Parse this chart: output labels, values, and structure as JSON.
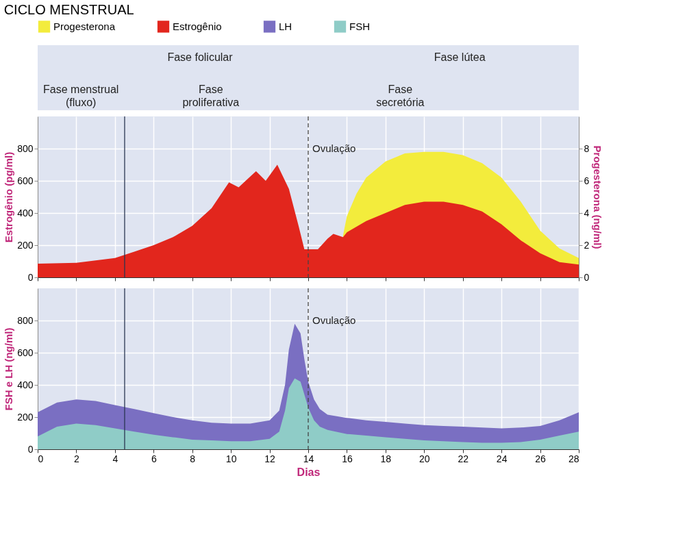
{
  "chart_data": [
    {
      "type": "area",
      "title": "CICLO MENSTRUAL",
      "ylabel": "Estrogênio (pg/ml)",
      "y2label": "Progesterona (ng/ml)",
      "annotations": [
        "Fase folicular",
        "Fase lútea",
        "Fase menstrual\n(fluxo)",
        "Fase\nproliferativa",
        "Fase\nsecretória"
      ],
      "series": [
        {
          "name": "Progesterona",
          "color": "#f3ec3c",
          "axis": "y2",
          "x": [
            15.8,
            16,
            16.5,
            17,
            18,
            19,
            20,
            21,
            22,
            23,
            24,
            25,
            26,
            27,
            28
          ],
          "values": [
            2.6,
            3.8,
            5.2,
            6.2,
            7.2,
            7.7,
            7.8,
            7.8,
            7.6,
            7.1,
            6.2,
            4.7,
            2.9,
            1.8,
            1.2
          ]
        },
        {
          "name": "Estrogênio",
          "color": "#e2261d",
          "x": [
            0,
            2,
            4,
            5,
            6,
            7,
            8,
            9,
            9.9,
            10.4,
            11.3,
            11.8,
            12.4,
            13,
            13.5,
            13.8,
            14.5,
            15,
            15.3,
            15.8,
            16,
            17,
            18,
            19,
            20,
            21,
            22,
            23,
            24,
            25,
            26,
            27,
            28
          ],
          "values": [
            85,
            90,
            120,
            160,
            200,
            250,
            320,
            430,
            590,
            560,
            660,
            600,
            700,
            550,
            320,
            175,
            175,
            240,
            270,
            250,
            280,
            350,
            400,
            450,
            470,
            470,
            450,
            410,
            330,
            230,
            150,
            95,
            80
          ]
        }
      ],
      "xlim": [
        0,
        28
      ],
      "xticks": [
        0,
        2,
        4,
        6,
        8,
        10,
        12,
        14,
        16,
        18,
        20,
        22,
        24,
        26,
        28
      ],
      "ylim": [
        0,
        1000
      ],
      "yticks": [
        0,
        200,
        400,
        600,
        800
      ],
      "y2lim": [
        0,
        10
      ],
      "y2ticks": [
        0,
        2,
        4,
        6,
        8
      ],
      "ref_lines": [
        {
          "axis": "x",
          "value": 4.5,
          "color": "#2a3550",
          "line_style": "solid"
        },
        {
          "axis": "x",
          "value": 14,
          "label": "Ovulação",
          "color": "#444444",
          "line_style": "dashed"
        }
      ],
      "grid": true,
      "legend": "top",
      "tick_labels": "y"
    },
    {
      "type": "area",
      "xlabel": "Dias",
      "ylabel": "FSH e LH (ng/ml)",
      "series": [
        {
          "name": "LH",
          "color": "#7a6fc2",
          "x": [
            0,
            1,
            2,
            3,
            4,
            5,
            6,
            7,
            8,
            9,
            10,
            11,
            12,
            12.5,
            12.8,
            13,
            13.3,
            13.6,
            13.8,
            14,
            14.3,
            14.6,
            15,
            16,
            17,
            18,
            19,
            20,
            21,
            22,
            23,
            24,
            25,
            26,
            27,
            28
          ],
          "values": [
            230,
            290,
            310,
            300,
            275,
            250,
            225,
            200,
            180,
            165,
            160,
            160,
            180,
            240,
            400,
            620,
            780,
            720,
            560,
            420,
            310,
            250,
            215,
            195,
            180,
            170,
            160,
            150,
            145,
            140,
            135,
            130,
            135,
            145,
            180,
            230
          ]
        },
        {
          "name": "FSH",
          "color": "#8fccc7",
          "x": [
            0,
            1,
            2,
            3,
            4,
            5,
            6,
            7,
            8,
            9,
            10,
            11,
            12,
            12.5,
            12.8,
            13,
            13.3,
            13.6,
            13.8,
            14,
            14.3,
            14.6,
            15,
            16,
            17,
            18,
            19,
            20,
            21,
            22,
            23,
            24,
            25,
            26,
            27,
            28
          ],
          "values": [
            80,
            140,
            160,
            150,
            130,
            110,
            90,
            75,
            60,
            55,
            50,
            50,
            65,
            110,
            240,
            380,
            440,
            420,
            340,
            260,
            180,
            140,
            120,
            95,
            85,
            75,
            65,
            55,
            50,
            45,
            40,
            40,
            45,
            60,
            85,
            110
          ]
        }
      ],
      "xlim": [
        0,
        28
      ],
      "xticks": [
        0,
        2,
        4,
        6,
        8,
        10,
        12,
        14,
        16,
        18,
        20,
        22,
        24,
        26,
        28
      ],
      "ylim": [
        0,
        1000
      ],
      "yticks": [
        0,
        200,
        400,
        600,
        800
      ],
      "ref_lines": [
        {
          "axis": "x",
          "value": 4.5,
          "color": "#2a3550",
          "line_style": "solid"
        },
        {
          "axis": "x",
          "value": 14,
          "label": "Ovulação",
          "color": "#444444",
          "line_style": "dashed"
        }
      ],
      "grid": true,
      "legend": "top"
    }
  ]
}
